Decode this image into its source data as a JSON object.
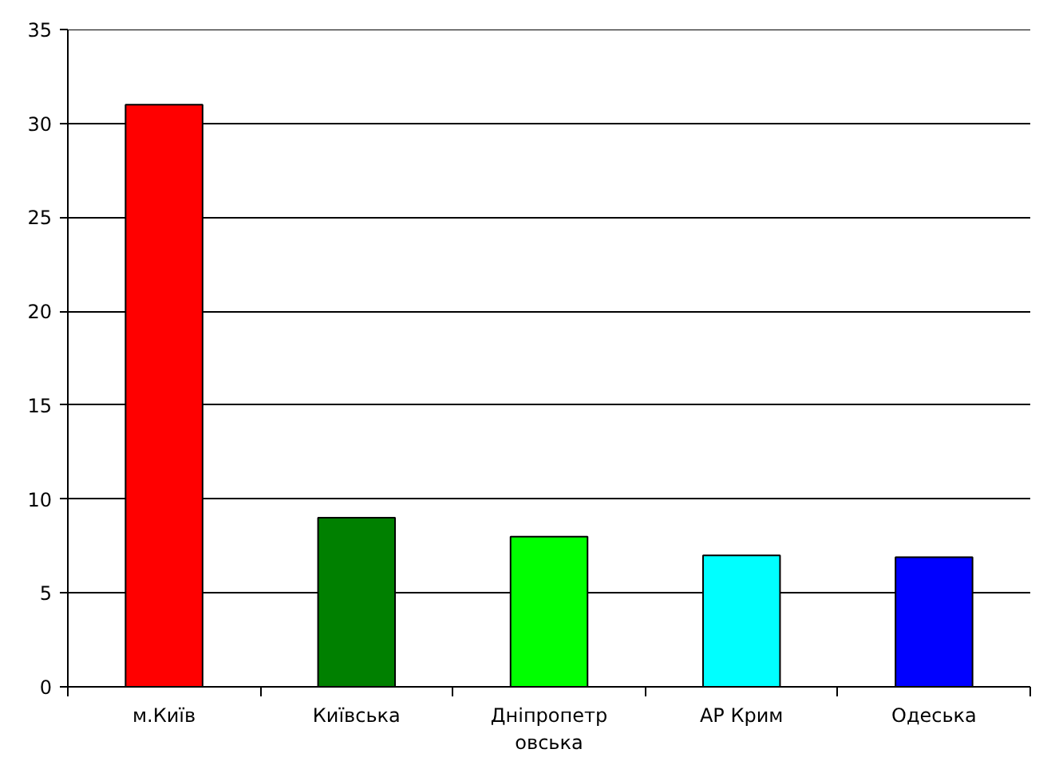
{
  "chart_data": {
    "type": "bar",
    "categories": [
      "м.Київ",
      "Київська",
      "Дніпропетровська",
      "АР Крим",
      "Одеська"
    ],
    "values": [
      31,
      9,
      8,
      7,
      6.9
    ],
    "colors": [
      "#ff0000",
      "#008000",
      "#00ff00",
      "#00ffff",
      "#0000ff"
    ],
    "ylim": [
      0,
      35
    ],
    "yticks": [
      0,
      5,
      10,
      15,
      20,
      25,
      30,
      35
    ],
    "grid": "y"
  }
}
